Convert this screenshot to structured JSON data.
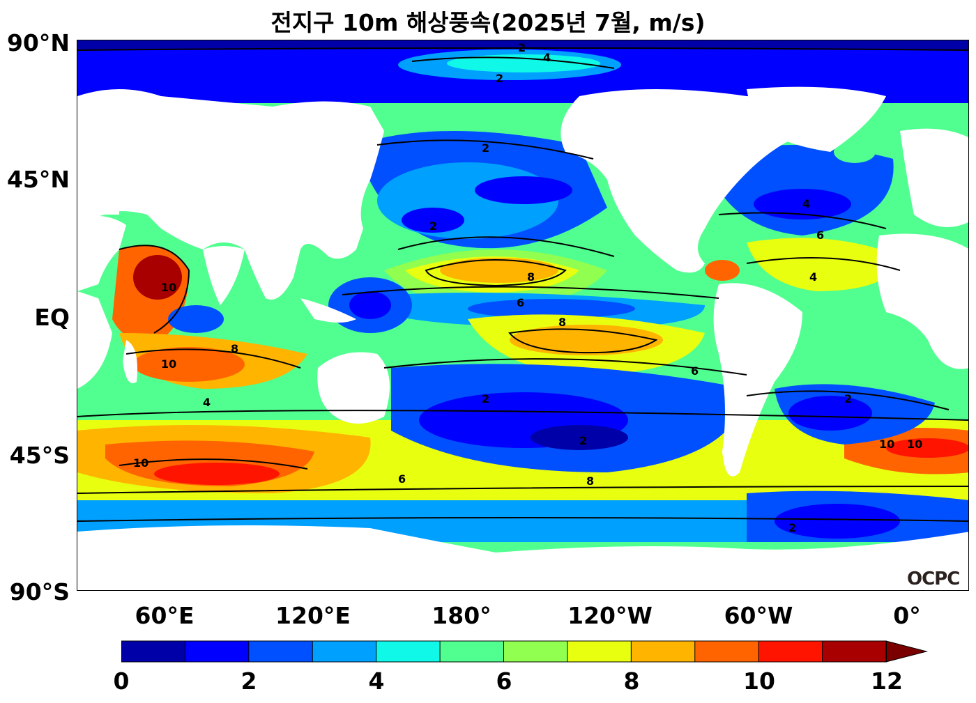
{
  "title": "전지구 10m 해상풍속(2025년 7월, m/s)",
  "logo": "OCPC",
  "y_ticks": [
    "90°N",
    "45°N",
    "EQ",
    "45°S",
    "90°S"
  ],
  "x_ticks": [
    "60°E",
    "120°E",
    "180°",
    "120°W",
    "60°W",
    "0°"
  ],
  "colorbar": {
    "ticks": [
      "0",
      "2",
      "4",
      "6",
      "8",
      "10",
      "12"
    ],
    "colors": [
      "#0000a8",
      "#0000ff",
      "#0050ff",
      "#00a0ff",
      "#10f8e8",
      "#50ff90",
      "#90ff50",
      "#e8ff10",
      "#ffb400",
      "#ff6400",
      "#ff1400",
      "#a80000"
    ],
    "extend_color": "#7a0000"
  },
  "contour_labels": [
    "2",
    "4",
    "6",
    "8",
    "10"
  ]
}
